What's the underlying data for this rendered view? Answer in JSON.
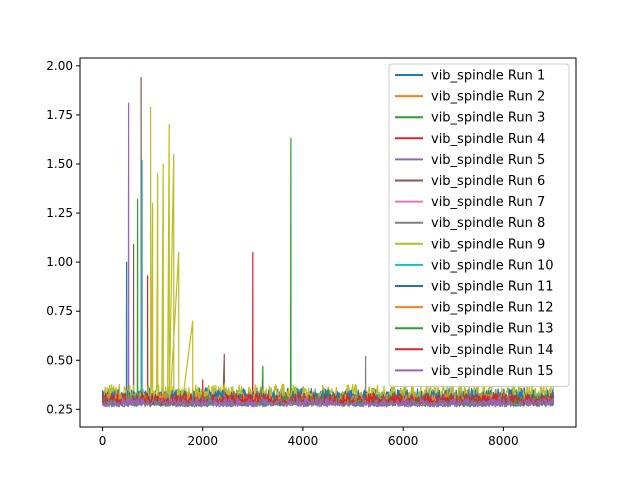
{
  "chart_data": {
    "type": "line",
    "title": "",
    "xlabel": "",
    "ylabel": "",
    "xlim": [
      -450,
      9450
    ],
    "ylim": [
      0.16,
      2.04
    ],
    "x_ticks": [
      0,
      2000,
      4000,
      6000,
      8000
    ],
    "y_ticks": [
      0.25,
      0.5,
      0.75,
      1.0,
      1.25,
      1.5,
      1.75,
      2.0
    ],
    "x_tick_labels": [
      "0",
      "2000",
      "4000",
      "6000",
      "8000"
    ],
    "y_tick_labels": [
      "0.25",
      "0.50",
      "0.75",
      "1.00",
      "1.25",
      "1.50",
      "1.75",
      "2.00"
    ],
    "legend_position": "top-right",
    "grid": false,
    "series": [
      {
        "name": "vib_spindle Run 1",
        "color": "#1f77b4",
        "baseline": [
          0.26,
          0.36
        ],
        "spikes": [
          [
            480,
            1.0
          ],
          [
            2430,
            0.42
          ]
        ]
      },
      {
        "name": "vib_spindle Run 2",
        "color": "#ff7f0e",
        "baseline": [
          0.27,
          0.33
        ],
        "spikes": []
      },
      {
        "name": "vib_spindle Run 3",
        "color": "#2ca02c",
        "baseline": [
          0.25,
          0.32
        ],
        "spikes": [
          [
            3760,
            1.63
          ],
          [
            700,
            1.32
          ],
          [
            3200,
            0.47
          ]
        ]
      },
      {
        "name": "vib_spindle Run 4",
        "color": "#d62728",
        "baseline": [
          0.26,
          0.33
        ],
        "spikes": [
          [
            3000,
            1.05
          ],
          [
            900,
            0.93
          ]
        ]
      },
      {
        "name": "vib_spindle Run 5",
        "color": "#9467bd",
        "baseline": [
          0.25,
          0.31
        ],
        "spikes": [
          [
            520,
            1.81
          ]
        ]
      },
      {
        "name": "vib_spindle Run 6",
        "color": "#8c564b",
        "baseline": [
          0.26,
          0.33
        ],
        "spikes": [
          [
            770,
            1.94
          ],
          [
            2430,
            0.53
          ],
          [
            620,
            1.09
          ]
        ]
      },
      {
        "name": "vib_spindle Run 7",
        "color": "#e377c2",
        "baseline": [
          0.26,
          0.31
        ],
        "spikes": []
      },
      {
        "name": "vib_spindle Run 8",
        "color": "#7f7f7f",
        "baseline": [
          0.26,
          0.34
        ],
        "spikes": [
          [
            5250,
            0.52
          ]
        ]
      },
      {
        "name": "vib_spindle Run 9",
        "color": "#bcbd22",
        "baseline": [
          0.28,
          0.38
        ],
        "spikes": [
          [
            960,
            1.79
          ],
          [
            1330,
            1.7
          ],
          [
            1210,
            1.5
          ],
          [
            1420,
            1.55
          ],
          [
            1100,
            1.45
          ],
          [
            1000,
            1.3
          ],
          [
            1520,
            1.05
          ],
          [
            1800,
            0.7
          ]
        ]
      },
      {
        "name": "vib_spindle Run 10",
        "color": "#17becf",
        "baseline": [
          0.26,
          0.33
        ],
        "spikes": [
          [
            790,
            1.52
          ]
        ]
      },
      {
        "name": "vib_spindle Run 11",
        "color": "#1f77b4",
        "baseline": [
          0.26,
          0.35
        ],
        "spikes": []
      },
      {
        "name": "vib_spindle Run 12",
        "color": "#ff7f0e",
        "baseline": [
          0.27,
          0.33
        ],
        "spikes": []
      },
      {
        "name": "vib_spindle Run 13",
        "color": "#2ca02c",
        "baseline": [
          0.25,
          0.32
        ],
        "spikes": []
      },
      {
        "name": "vib_spindle Run 14",
        "color": "#d62728",
        "baseline": [
          0.26,
          0.33
        ],
        "spikes": [
          [
            2000,
            0.4
          ]
        ]
      },
      {
        "name": "vib_spindle Run 15",
        "color": "#9467bd",
        "baseline": [
          0.25,
          0.31
        ],
        "spikes": []
      }
    ]
  }
}
